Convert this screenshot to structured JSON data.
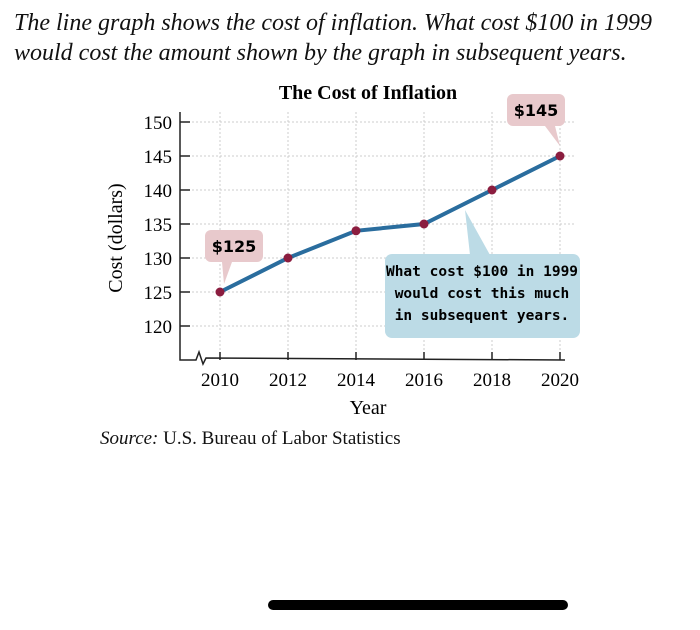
{
  "intro": {
    "line1": "The line graph shows the cost of inflation. What cost $100 in 1999",
    "line2": "would cost the amount shown by the graph in subsequent years."
  },
  "source": {
    "label": "Source:",
    "text": "U.S. Bureau of Labor Statistics"
  },
  "chart_data": {
    "type": "line",
    "title": "The Cost of Inflation",
    "xlabel": "Year",
    "ylabel": "Cost (dollars)",
    "x": [
      2010,
      2012,
      2014,
      2016,
      2018,
      2020
    ],
    "values": [
      125,
      130,
      134,
      135,
      140,
      145
    ],
    "xticks": [
      "2010",
      "2012",
      "2014",
      "2016",
      "2018",
      "2020"
    ],
    "yticks": [
      "120",
      "125",
      "130",
      "135",
      "140",
      "145",
      "150"
    ],
    "ylim": [
      120,
      150
    ],
    "axis_break": true,
    "grid": true,
    "annotations": [
      {
        "text": "$125",
        "x": 2010,
        "y": 125
      },
      {
        "text": "$145",
        "x": 2020,
        "y": 145
      },
      {
        "lines": [
          "What cost $100 in 1999",
          "would cost this much",
          "in subsequent years."
        ]
      }
    ],
    "colors": {
      "line": "#2a6d9e",
      "marker": "#8b1d3f",
      "label_box": "#e8c9cc",
      "callout_box": "#bcdbe6"
    }
  }
}
